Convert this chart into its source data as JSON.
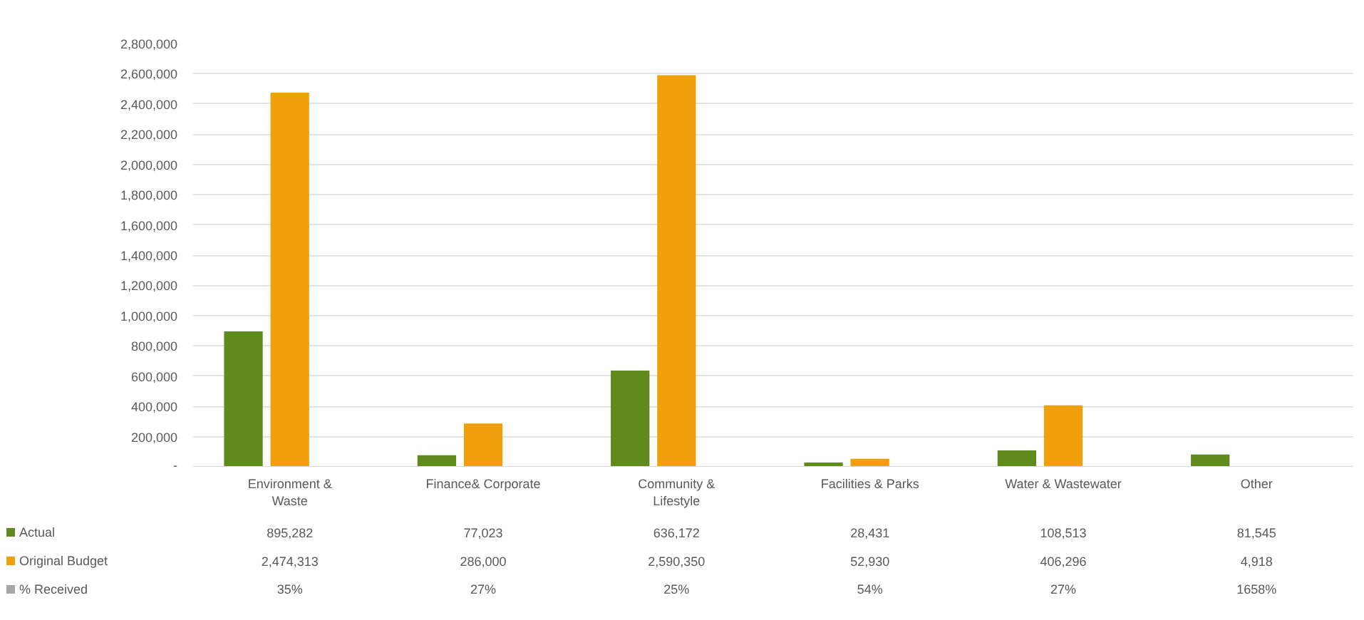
{
  "chart_data": {
    "type": "bar",
    "categories": [
      "Environment & Waste",
      "Finance& Corporate",
      "Community & Lifestyle",
      "Facilities & Parks",
      "Water & Wastewater",
      "Other"
    ],
    "series": [
      {
        "name": "Actual",
        "color": "#5f8a1c",
        "values": [
          895282,
          77023,
          636172,
          28431,
          108513,
          81545
        ],
        "value_labels": [
          "895,282",
          "77,023",
          "636,172",
          "28,431",
          "108,513",
          "81,545"
        ]
      },
      {
        "name": "Original Budget",
        "color": "#f0a00a",
        "values": [
          2474313,
          286000,
          2590350,
          52930,
          406296,
          4918
        ],
        "value_labels": [
          "2,474,313",
          "286,000",
          "2,590,350",
          "52,930",
          "406,296",
          "4,918"
        ]
      },
      {
        "name": "% Received",
        "color": "#a6a6a6",
        "values": [
          0.35,
          0.27,
          0.25,
          0.54,
          0.27,
          16.58
        ],
        "value_labels": [
          "35%",
          "27%",
          "25%",
          "54%",
          "27%",
          "1658%"
        ]
      }
    ],
    "ylim": [
      0,
      2800000
    ],
    "yticks": [
      {
        "value": 0,
        "label": "-"
      },
      {
        "value": 200000,
        "label": "200,000"
      },
      {
        "value": 400000,
        "label": "400,000"
      },
      {
        "value": 600000,
        "label": "600,000"
      },
      {
        "value": 800000,
        "label": "800,000"
      },
      {
        "value": 1000000,
        "label": "1,000,000"
      },
      {
        "value": 1200000,
        "label": "1,200,000"
      },
      {
        "value": 1400000,
        "label": "1,400,000"
      },
      {
        "value": 1600000,
        "label": "1,600,000"
      },
      {
        "value": 1800000,
        "label": "1,800,000"
      },
      {
        "value": 2000000,
        "label": "2,000,000"
      },
      {
        "value": 2200000,
        "label": "2,200,000"
      },
      {
        "value": 2400000,
        "label": "2,400,000"
      },
      {
        "value": 2600000,
        "label": "2,600,000"
      },
      {
        "value": 2800000,
        "label": "2,800,000"
      }
    ],
    "grid": "y",
    "legend": "bottom"
  }
}
